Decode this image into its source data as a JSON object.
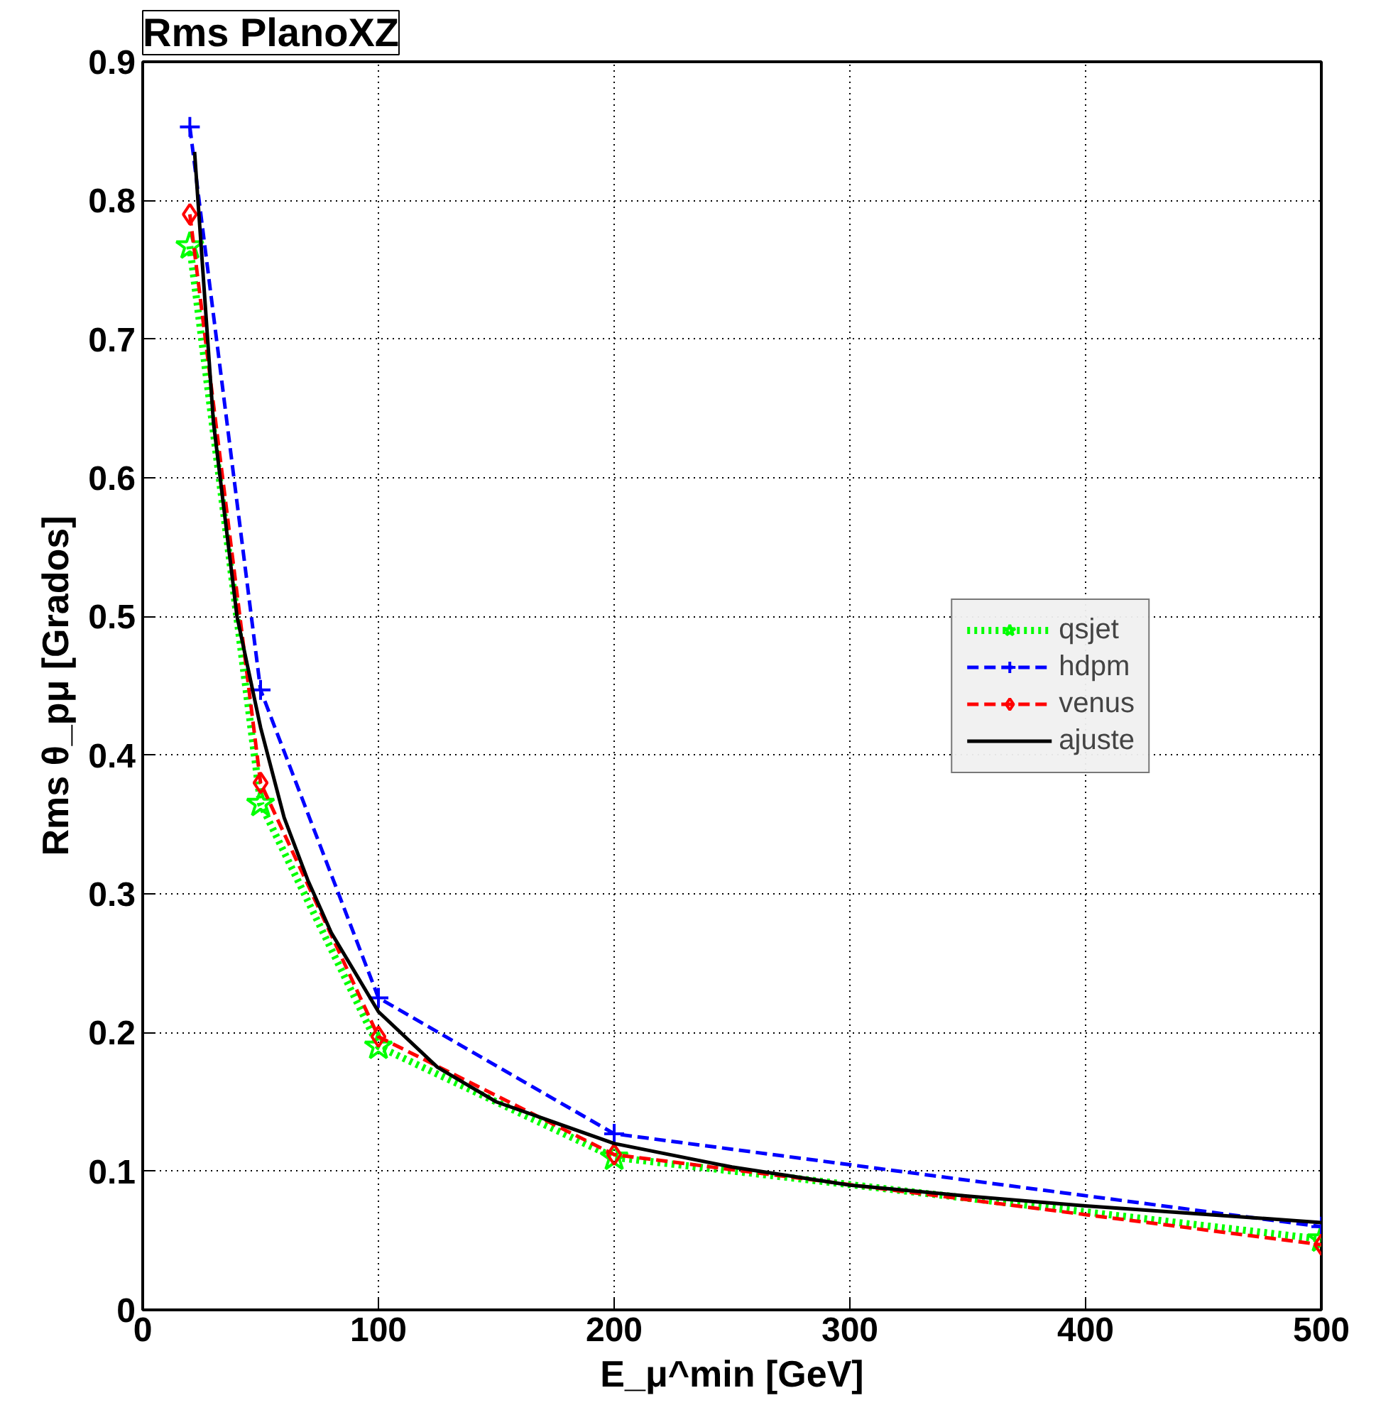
{
  "chart_data": {
    "type": "line",
    "title": "Rms PlanoXZ",
    "xlabel": "E_μ^min [GeV]",
    "ylabel": "Rms θ_pμ [Grados]",
    "xlim": [
      0,
      500
    ],
    "xticks": [
      0,
      100,
      200,
      300,
      400,
      500
    ],
    "ylim": [
      0,
      0.9
    ],
    "yticks": [
      0,
      0.1,
      0.2,
      0.3,
      0.4,
      0.5,
      0.6,
      0.7,
      0.8,
      0.9
    ],
    "grid": true,
    "legend": "right",
    "series": [
      {
        "name": "qsjet",
        "color": "#00ff00",
        "marker": "star",
        "line_style": "dotted",
        "x": [
          20,
          50,
          100,
          200,
          500
        ],
        "values": [
          0.767,
          0.365,
          0.19,
          0.11,
          0.051
        ]
      },
      {
        "name": "hdpm",
        "color": "#0000ff",
        "marker": "cross",
        "line_style": "dashed",
        "x": [
          20,
          50,
          100,
          200,
          500
        ],
        "values": [
          0.853,
          0.447,
          0.225,
          0.127,
          0.06
        ]
      },
      {
        "name": "venus",
        "color": "#ff0000",
        "marker": "diamond",
        "line_style": "dashed",
        "x": [
          20,
          50,
          100,
          200,
          500
        ],
        "values": [
          0.79,
          0.38,
          0.197,
          0.112,
          0.047
        ]
      },
      {
        "name": "ajuste",
        "color": "#000000",
        "marker": "none",
        "line_style": "solid",
        "x": [
          22,
          30,
          40,
          50,
          60,
          70,
          80,
          100,
          125,
          150,
          200,
          250,
          300,
          350,
          400,
          450,
          500
        ],
        "values": [
          0.835,
          0.64,
          0.5,
          0.42,
          0.355,
          0.31,
          0.272,
          0.215,
          0.175,
          0.15,
          0.12,
          0.103,
          0.09,
          0.082,
          0.075,
          0.069,
          0.063
        ]
      }
    ]
  }
}
